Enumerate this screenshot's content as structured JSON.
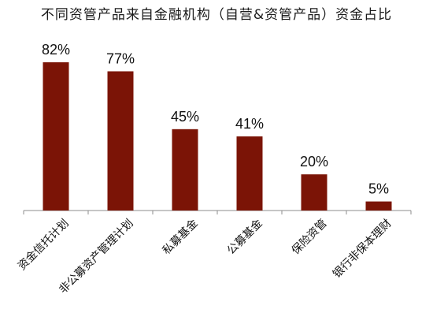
{
  "chart_data": {
    "type": "bar",
    "title": "不同资管产品来自金融机构（自营&资管产品）资金占比",
    "categories": [
      "资金信托计划",
      "非公募资产管理计划",
      "私募基金",
      "公募基金",
      "保险资管",
      "银行非保本理财"
    ],
    "values": [
      82,
      77,
      45,
      41,
      20,
      5
    ],
    "data_labels": [
      "82%",
      "77%",
      "45%",
      "41%",
      "20%",
      "5%"
    ],
    "ylim": [
      0,
      100
    ],
    "grid": false,
    "legend": "none",
    "colors": {
      "bar": "#7b1406",
      "axis": "#8c8c8c"
    }
  }
}
